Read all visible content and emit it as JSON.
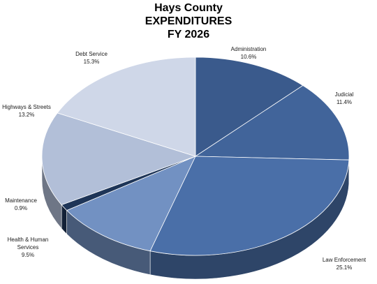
{
  "chart_data": {
    "type": "pie",
    "title_lines": [
      "Hays County",
      "EXPENDITURES",
      "FY 2026"
    ],
    "slices": [
      {
        "name": "Administration",
        "value": 10.6,
        "value_label": "10.6%",
        "color": "#3a5a8c"
      },
      {
        "name": "Judicial",
        "value": 11.4,
        "value_label": "11.4%",
        "color": "#41649a"
      },
      {
        "name": "Law Enforcement",
        "value": 25.1,
        "value_label": "25.1%",
        "color": "#4a6fa8"
      },
      {
        "name": "",
        "value": 0,
        "value_label": "",
        "color": "#3d5f95"
      },
      {
        "name": "Health & Human Services",
        "name_lines": [
          "Health & Human",
          "Services"
        ],
        "value": 9.5,
        "value_label": "9.5%",
        "color": "#7291c2"
      },
      {
        "name": "Maintenance",
        "value": 0.9,
        "value_label": "0.9%",
        "color": "#1e3558"
      },
      {
        "name": "Highways & Streets",
        "value": 13.2,
        "value_label": "13.2%",
        "color": "#b2bfd8"
      },
      {
        "name": "Debt Service",
        "value": 15.3,
        "value_label": "15.3%",
        "color": "#cfd7e8"
      }
    ],
    "legend": "none",
    "style": "3d-pie"
  }
}
